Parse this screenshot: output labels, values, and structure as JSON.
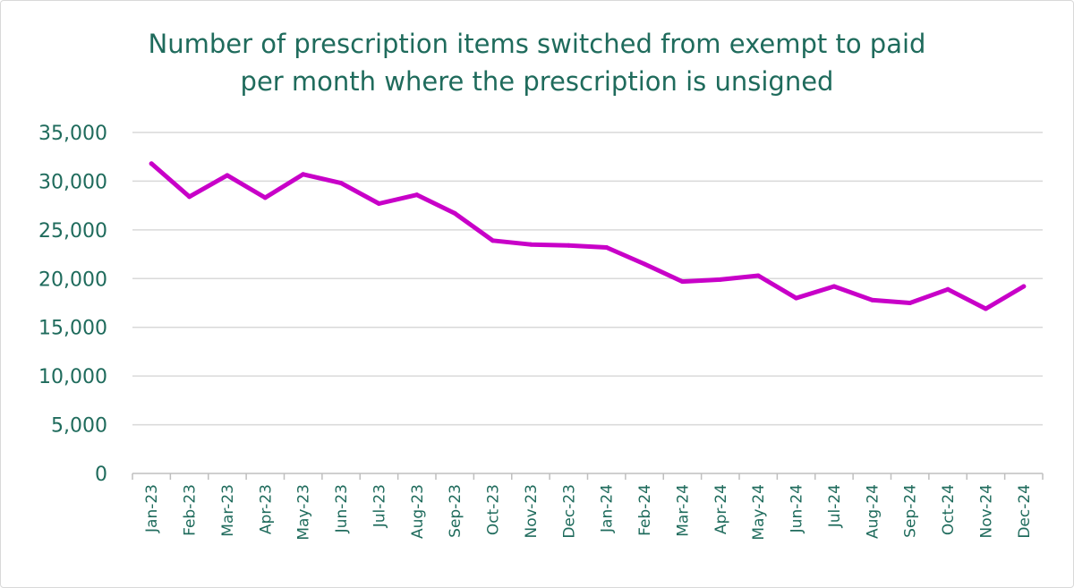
{
  "chart_data": {
    "type": "line",
    "title_lines": [
      "Number of prescription items switched from exempt to paid",
      "per month where the prescription is unsigned"
    ],
    "xlabel": "",
    "ylabel": "",
    "ylim": [
      0,
      35000
    ],
    "yticks": [
      0,
      5000,
      10000,
      15000,
      20000,
      25000,
      30000,
      35000
    ],
    "ytick_labels": [
      "0",
      "5,000",
      "10,000",
      "15,000",
      "20,000",
      "25,000",
      "30,000",
      "35,000"
    ],
    "grid": true,
    "legend": "none",
    "categories": [
      "Jan-23",
      "Feb-23",
      "Mar-23",
      "Apr-23",
      "May-23",
      "Jun-23",
      "Jul-23",
      "Aug-23",
      "Sep-23",
      "Oct-23",
      "Nov-23",
      "Dec-23",
      "Jan-24",
      "Feb-24",
      "Mar-24",
      "Apr-24",
      "May-24",
      "Jun-24",
      "Jul-24",
      "Aug-24",
      "Sep-24",
      "Oct-24",
      "Nov-24",
      "Dec-24"
    ],
    "series": [
      {
        "color": "#c800c8",
        "values": [
          31800,
          28400,
          30600,
          28300,
          30700,
          29800,
          27700,
          28600,
          26700,
          23900,
          23500,
          23400,
          23200,
          21500,
          19700,
          19900,
          20300,
          18000,
          19200,
          17800,
          17500,
          18900,
          16900,
          19200
        ]
      }
    ]
  },
  "colors": {
    "text": "#1f6b5c",
    "grid": "#d9d9d9",
    "axis": "#bfbfbf",
    "line": "#c800c8"
  }
}
